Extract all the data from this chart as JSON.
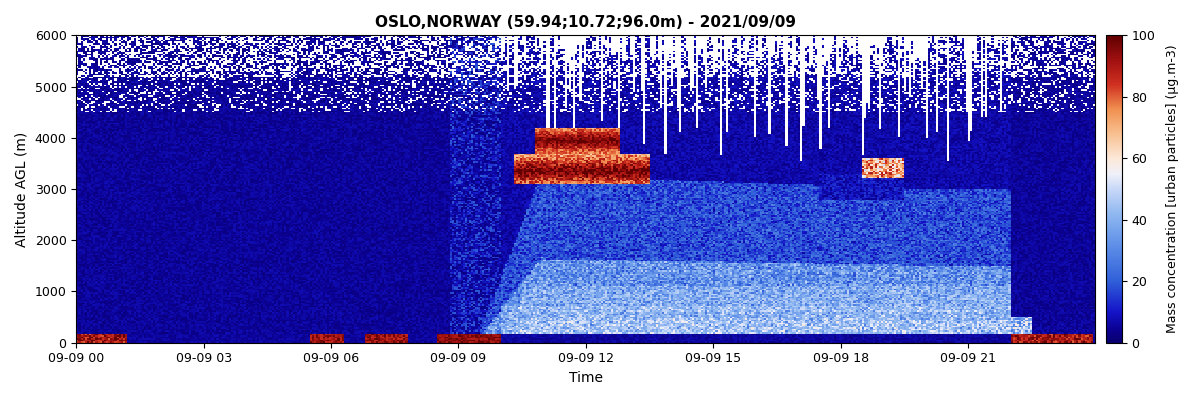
{
  "title": "OSLO,NORWAY (59.94;10.72;96.0m) - 2021/09/09",
  "xlabel": "Time",
  "ylabel": "Altitude AGL (m)",
  "colorbar_label": "Mass concentration [urban particles] (µg.m-3)",
  "xlim_hours": [
    0,
    24
  ],
  "ylim": [
    0,
    6000
  ],
  "vmin": 0,
  "vmax": 100,
  "yticks": [
    0,
    1000,
    2000,
    3000,
    4000,
    5000,
    6000
  ],
  "xtick_labels": [
    "09-09 00",
    "09-09 03",
    "09-09 06",
    "09-09 09",
    "09-09 12",
    "09-09 15",
    "09-09 18",
    "09-09 21"
  ],
  "xtick_hours": [
    0,
    3,
    6,
    9,
    12,
    15,
    18,
    21
  ],
  "colorbar_ticks": [
    0,
    20,
    40,
    60,
    80,
    100
  ],
  "n_time": 480,
  "n_alt": 200,
  "alt_max": 6000,
  "bg_color": "#dde0ee"
}
